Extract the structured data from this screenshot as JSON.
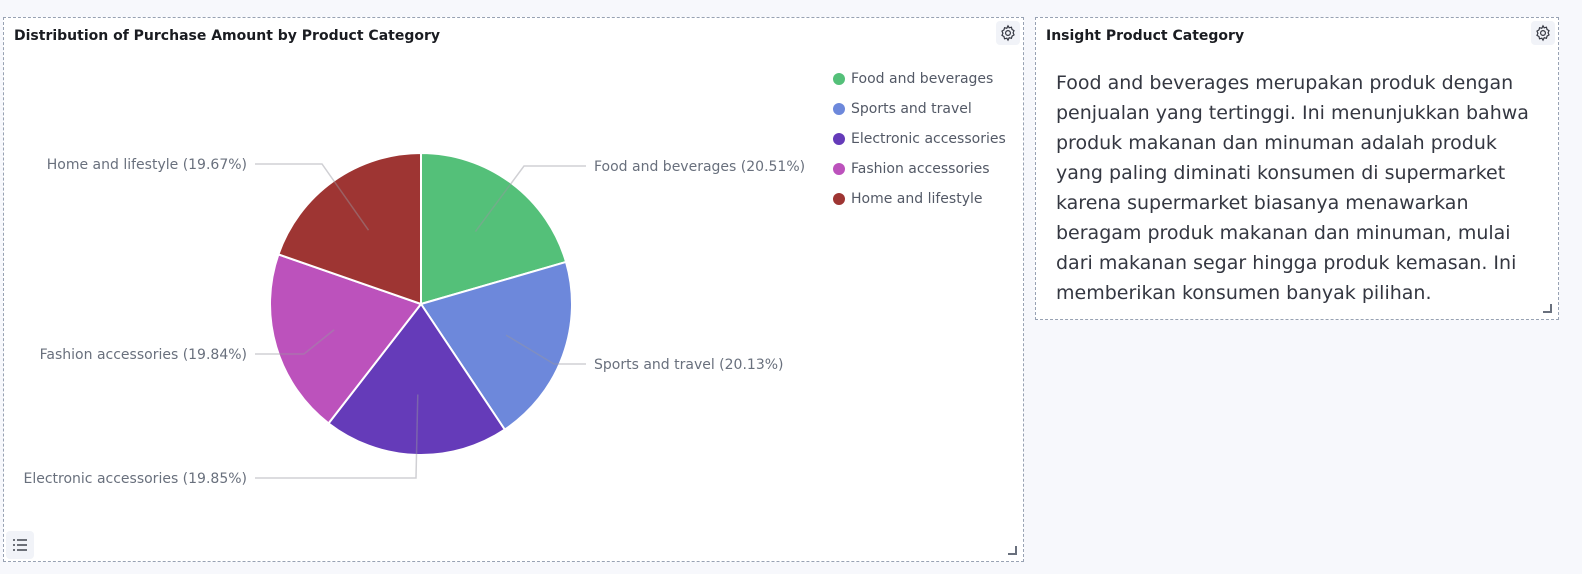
{
  "chart_panel": {
    "title": "Distribution of Purchase Amount by Product Category"
  },
  "insight_panel": {
    "title": "Insight Product Category",
    "text": "Food and beverages merupakan produk dengan penjualan yang tertinggi. Ini menunjukkan bahwa produk makanan dan minuman adalah produk yang paling diminati konsumen di supermarket karena supermarket biasanya menawarkan beragam produk makanan dan minuman, mulai dari makanan segar hingga produk kemasan. Ini memberikan konsumen banyak pilihan."
  },
  "icons": {
    "settings": "gear-icon",
    "legend_toggle": "list-icon",
    "resize": "resize-handle-icon"
  },
  "chart_data": {
    "type": "pie",
    "legend_position": "top-right",
    "slices": [
      {
        "label": "Food and beverages",
        "percent": 20.51,
        "slice_label": "Food and beverages (20.51%)",
        "color": "#54c079"
      },
      {
        "label": "Sports and travel",
        "percent": 20.13,
        "slice_label": "Sports and travel (20.13%)",
        "color": "#6d88db"
      },
      {
        "label": "Electronic accessories",
        "percent": 19.85,
        "slice_label": "Electronic accessories (19.85%)",
        "color": "#653bb9"
      },
      {
        "label": "Fashion accessories",
        "percent": 19.84,
        "slice_label": "Fashion accessories (19.84%)",
        "color": "#bc52bc"
      },
      {
        "label": "Home and lifestyle",
        "percent": 19.67,
        "slice_label": "Home and lifestyle (19.67%)",
        "color": "#9e3533"
      }
    ]
  }
}
